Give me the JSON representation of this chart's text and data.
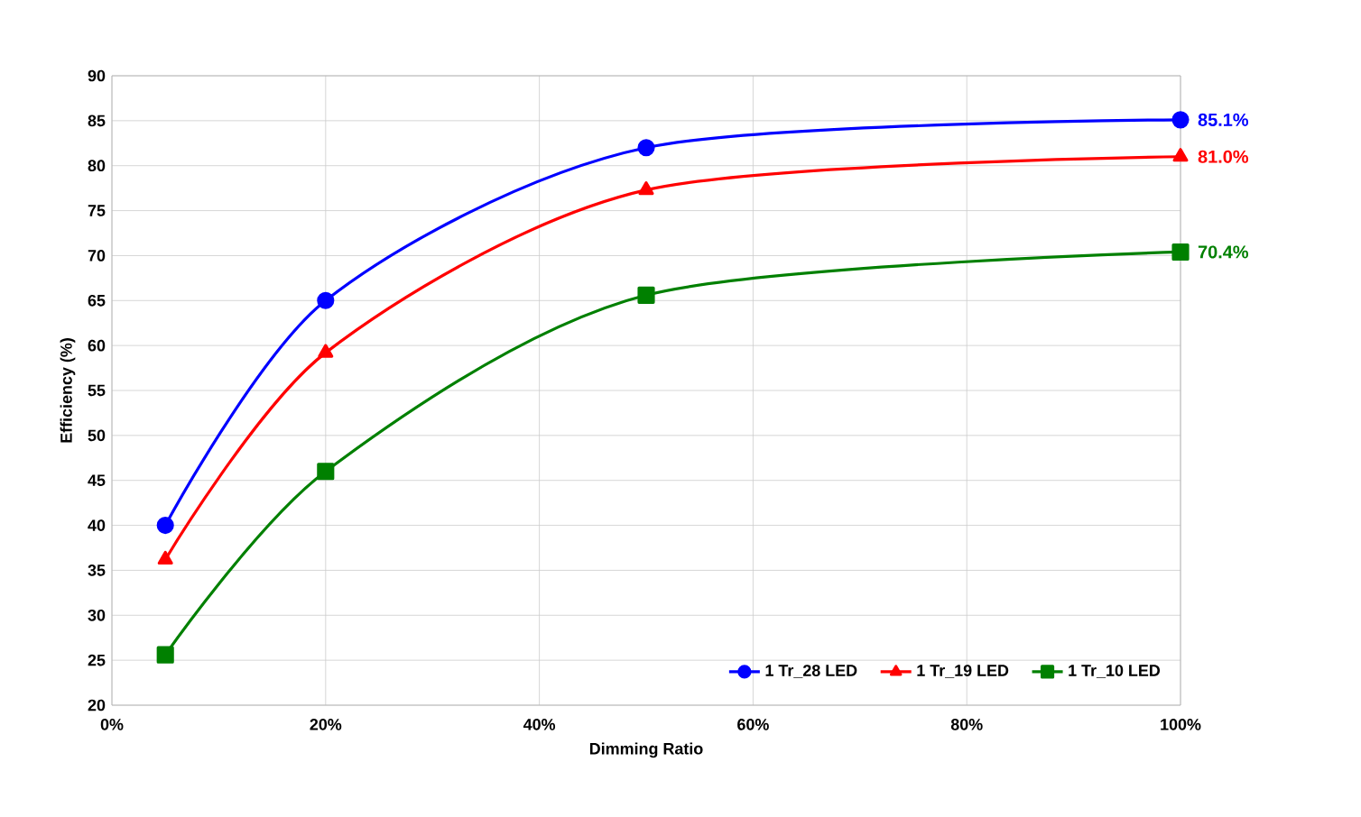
{
  "chart_data": {
    "type": "line",
    "xlabel": "Dimming Ratio",
    "ylabel": "Efficiency (%)",
    "x": [
      5,
      20,
      50,
      100
    ],
    "xlim": [
      0,
      100
    ],
    "xticks": [
      {
        "value": 0,
        "label": "0%"
      },
      {
        "value": 20,
        "label": "20%"
      },
      {
        "value": 40,
        "label": "40%"
      },
      {
        "value": 60,
        "label": "60%"
      },
      {
        "value": 80,
        "label": "80%"
      },
      {
        "value": 100,
        "label": "100%"
      }
    ],
    "ylim": [
      20,
      90
    ],
    "yticks": [
      20,
      25,
      30,
      35,
      40,
      45,
      50,
      55,
      60,
      65,
      70,
      75,
      80,
      85,
      90
    ],
    "grid": true,
    "legend": "bottom right",
    "line_style": "solid",
    "series": [
      {
        "name": "1 Tr_28 LED",
        "color": "#0000ff",
        "marker": "circle",
        "values": [
          40,
          65,
          82,
          85.1
        ],
        "value_labels": [
          null,
          null,
          null,
          "85.1%"
        ]
      },
      {
        "name": "1 Tr_19 LED",
        "color": "#ff0000",
        "marker": "triangle",
        "values": [
          36.2,
          59.2,
          77.3,
          81.0
        ],
        "value_labels": [
          null,
          null,
          null,
          "81.0%"
        ]
      },
      {
        "name": "1 Tr_10 LED",
        "color": "#008000",
        "marker": "square",
        "values": [
          25.6,
          46.0,
          65.6,
          70.4
        ],
        "value_labels": [
          null,
          null,
          null,
          "70.4%"
        ]
      }
    ]
  }
}
